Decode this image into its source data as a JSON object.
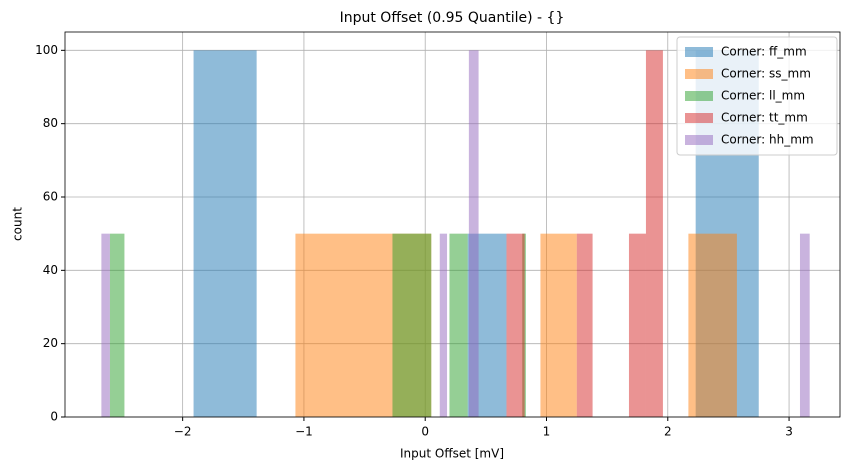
{
  "chart_data": {
    "type": "histogram",
    "title": "Input Offset (0.95 Quantile) - {}",
    "xlabel": "Input Offset [mV]",
    "ylabel": "count",
    "xlim": [
      -2.97,
      3.42
    ],
    "ylim": [
      0,
      105
    ],
    "xticks": [
      {
        "value": -2,
        "label": "−2"
      },
      {
        "value": -1,
        "label": "−1"
      },
      0,
      1,
      2,
      3
    ],
    "yticks": [
      0,
      20,
      40,
      60,
      80,
      100
    ],
    "grid": true,
    "legend": "upper right",
    "alpha": 0.5,
    "series": [
      {
        "name": "Corner: ff_mm",
        "color": "#1f77b4",
        "bins": [
          -1.91,
          -1.39,
          0.35,
          0.67,
          2.23,
          2.75
        ],
        "counts": [
          100,
          0,
          50,
          0,
          100
        ]
      },
      {
        "name": "Corner: ss_mm",
        "color": "#ff7f0e",
        "bins": [
          -1.07,
          0.05,
          0.95,
          1.25,
          2.17,
          2.57
        ],
        "counts": [
          50,
          0,
          50,
          0,
          50
        ]
      },
      {
        "name": "Corner: ll_mm",
        "color": "#2ca02c",
        "bins": [
          -2.6,
          -2.48,
          -0.27,
          0.05,
          0.2,
          0.35,
          0.8,
          0.83
        ],
        "counts": [
          50,
          0,
          50,
          0,
          50,
          0,
          50
        ]
      },
      {
        "name": "Corner: tt_mm",
        "color": "#d62728",
        "bins": [
          0.67,
          0.82,
          1.25,
          1.38,
          1.68,
          1.82,
          1.96
        ],
        "counts": [
          50,
          0,
          50,
          0,
          50,
          100
        ]
      },
      {
        "name": "Corner: hh_mm",
        "color": "#9467bd",
        "bins": [
          -2.67,
          -2.6,
          0.12,
          0.18,
          0.36,
          0.44,
          3.09,
          3.17
        ],
        "counts": [
          50,
          0,
          50,
          0,
          100,
          0,
          50
        ]
      }
    ]
  }
}
